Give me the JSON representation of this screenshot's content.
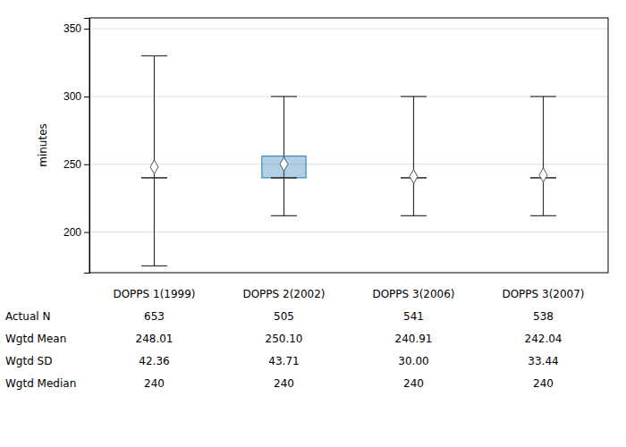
{
  "chart_data": {
    "type": "box",
    "categories": [
      "DOPPS 1(1999)",
      "DOPPS 2(2002)",
      "DOPPS 3(2006)",
      "DOPPS 3(2007)"
    ],
    "means": [
      248.01,
      250.1,
      240.91,
      242.04
    ],
    "medians": [
      240,
      240,
      240,
      240
    ],
    "whisker_top": [
      330,
      300,
      300,
      300
    ],
    "whisker_bottom": [
      175,
      212,
      212,
      212
    ],
    "box_top": [
      null,
      256,
      null,
      null
    ],
    "box_bottom": [
      null,
      240,
      null,
      null
    ],
    "ylabel": "minutes",
    "ylim": [
      170,
      358
    ],
    "yticks": [
      200,
      250,
      300,
      350
    ],
    "grid": true,
    "table": {
      "rows": [
        "Actual N",
        "Wgtd Mean",
        "Wgtd SD",
        "Wgtd Median"
      ],
      "cells": [
        [
          "653",
          "505",
          "541",
          "538"
        ],
        [
          "248.01",
          "250.10",
          "240.91",
          "242.04"
        ],
        [
          "42.36",
          "43.71",
          "30.00",
          "33.44"
        ],
        [
          "240",
          "240",
          "240",
          "240"
        ]
      ]
    }
  }
}
